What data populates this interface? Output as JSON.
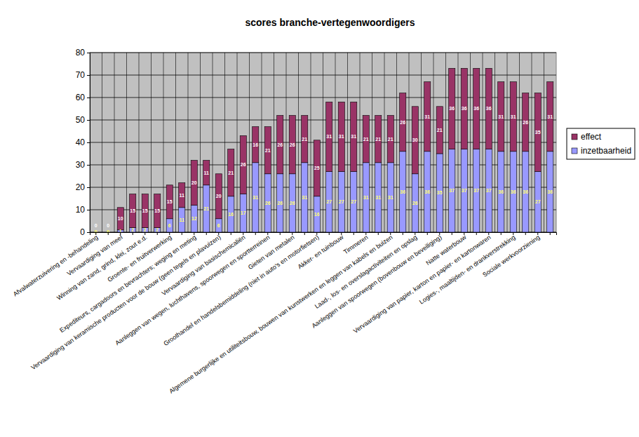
{
  "chart_data": {
    "type": "bar",
    "title": "scores branche-vertegenwoordigers",
    "stacked": true,
    "data_labels": true,
    "grid": true,
    "legend": "right",
    "ylim": [
      0,
      80
    ],
    "yticks": [
      0,
      10,
      20,
      30,
      40,
      50,
      60,
      70,
      80
    ],
    "categories": [
      "Afvalwaterzuivering en -behandeling",
      null,
      "Vervaardiging van meel",
      null,
      "Winning van zand, grind, klei, zout e.d.",
      null,
      "Groente- en fruitverwerking",
      null,
      "Expediteurs, cargadoors en bevrachters; weging en meting",
      null,
      "Vervaardiging van keramische producten voor de bouw (geen tegels en plavuizen)",
      null,
      "Vervaardiging van basischemicaliën",
      null,
      "Aanleggen van wegen, luchthavens, spoorwegen en sportterreinen",
      null,
      "Gieten van metalen",
      null,
      "Groothandel en handelsbemiddeling (niet in auto's en motorfietsen)",
      null,
      "Akker- en tuinbouw",
      null,
      "Timmeren",
      null,
      "Algemene burgerlijke en utiliteitsbouw, bouwen van kunstwerken en leggen van kabels en buizen",
      null,
      "Laad-, los- en overslagactiviteiten en opslag",
      null,
      "Aanleggen van spoorwegen (bovenbouw en beveiliging)",
      null,
      "Natte waterbouw",
      null,
      "Vervaardiging van papier, karton en papier- en kartonwaren",
      null,
      "Logies-, maaltijden- en drankverstrekking",
      null,
      "Sociale werkvoorziening",
      null
    ],
    "series": [
      {
        "name": "inzetbaarheid",
        "color": "#9999ff",
        "values": [
          0,
          0,
          1,
          2,
          2,
          2,
          6,
          11,
          12,
          21,
          6,
          16,
          17,
          31,
          26,
          26,
          26,
          31,
          16,
          27,
          27,
          27,
          31,
          31,
          31,
          36,
          26,
          36,
          35,
          37,
          37,
          37,
          37,
          36,
          36,
          36,
          27,
          36
        ]
      },
      {
        "name": "effect",
        "color": "#993366",
        "values": [
          0,
          0,
          10,
          15,
          15,
          15,
          15,
          11,
          20,
          11,
          20,
          21,
          26,
          16,
          21,
          26,
          26,
          21,
          25,
          31,
          31,
          31,
          21,
          21,
          21,
          26,
          30,
          31,
          21,
          36,
          36,
          36,
          36,
          31,
          31,
          26,
          35,
          31
        ]
      }
    ]
  }
}
